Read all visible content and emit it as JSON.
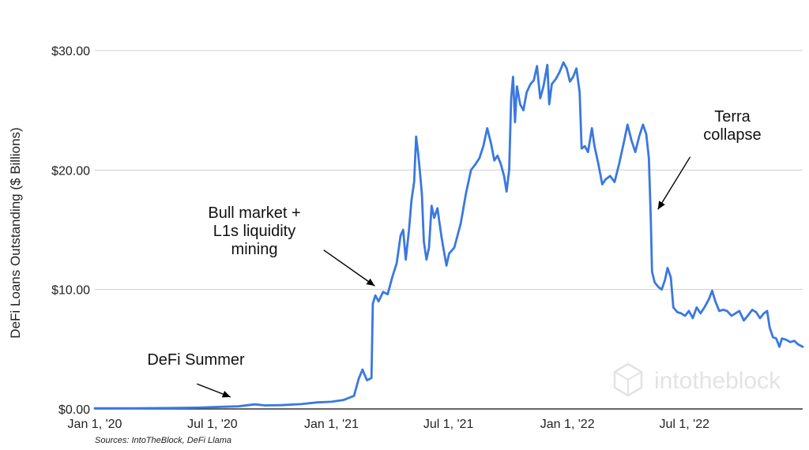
{
  "chart_data": {
    "type": "line",
    "ylabel": "DeFi Loans Outstanding ($ Billions)",
    "ylim": [
      0,
      30
    ],
    "xlim": [
      "2020-01-01",
      "2022-12-31"
    ],
    "grid": true,
    "y_ticks": [
      {
        "value": 0,
        "label": "$0.00"
      },
      {
        "value": 10,
        "label": "$10.00"
      },
      {
        "value": 20,
        "label": "$20.00"
      },
      {
        "value": 30,
        "label": "$30.00"
      }
    ],
    "x_ticks": [
      {
        "date": "2020-01-01",
        "label": "Jan 1, '20"
      },
      {
        "date": "2020-07-01",
        "label": "Jul 1, '20"
      },
      {
        "date": "2021-01-01",
        "label": "Jan 1, '21"
      },
      {
        "date": "2021-07-01",
        "label": "Jul 1, '21"
      },
      {
        "date": "2022-01-01",
        "label": "Jan 1, '22"
      },
      {
        "date": "2022-07-01",
        "label": "Jul 1, '22"
      }
    ],
    "series": [
      {
        "color": "#3a78e0",
        "points": [
          [
            "2020-01-01",
            0.05
          ],
          [
            "2020-03-01",
            0.06
          ],
          [
            "2020-05-01",
            0.08
          ],
          [
            "2020-06-15",
            0.12
          ],
          [
            "2020-07-15",
            0.18
          ],
          [
            "2020-08-10",
            0.22
          ],
          [
            "2020-08-25",
            0.32
          ],
          [
            "2020-09-05",
            0.38
          ],
          [
            "2020-09-20",
            0.3
          ],
          [
            "2020-10-15",
            0.32
          ],
          [
            "2020-11-15",
            0.4
          ],
          [
            "2020-12-10",
            0.55
          ],
          [
            "2021-01-01",
            0.6
          ],
          [
            "2021-01-20",
            0.75
          ],
          [
            "2021-02-05",
            1.1
          ],
          [
            "2021-02-12",
            2.5
          ],
          [
            "2021-02-18",
            3.3
          ],
          [
            "2021-02-25",
            2.4
          ],
          [
            "2021-03-04",
            2.6
          ],
          [
            "2021-03-06",
            8.8
          ],
          [
            "2021-03-10",
            9.5
          ],
          [
            "2021-03-15",
            9.0
          ],
          [
            "2021-03-22",
            9.8
          ],
          [
            "2021-03-29",
            9.6
          ],
          [
            "2021-04-05",
            11.0
          ],
          [
            "2021-04-12",
            12.2
          ],
          [
            "2021-04-18",
            14.5
          ],
          [
            "2021-04-22",
            15.0
          ],
          [
            "2021-04-26",
            12.5
          ],
          [
            "2021-05-01",
            15.0
          ],
          [
            "2021-05-05",
            17.5
          ],
          [
            "2021-05-09",
            19.0
          ],
          [
            "2021-05-12",
            22.8
          ],
          [
            "2021-05-15",
            21.5
          ],
          [
            "2021-05-18",
            19.8
          ],
          [
            "2021-05-21",
            18.0
          ],
          [
            "2021-05-24",
            14.0
          ],
          [
            "2021-05-28",
            12.5
          ],
          [
            "2021-06-01",
            13.5
          ],
          [
            "2021-06-05",
            17.0
          ],
          [
            "2021-06-09",
            16.0
          ],
          [
            "2021-06-14",
            16.8
          ],
          [
            "2021-06-20",
            14.5
          ],
          [
            "2021-06-24",
            13.2
          ],
          [
            "2021-06-28",
            12.0
          ],
          [
            "2021-07-02",
            13.0
          ],
          [
            "2021-07-10",
            13.5
          ],
          [
            "2021-07-20",
            15.5
          ],
          [
            "2021-07-28",
            18.0
          ],
          [
            "2021-08-05",
            20.0
          ],
          [
            "2021-08-12",
            20.5
          ],
          [
            "2021-08-18",
            21.0
          ],
          [
            "2021-08-24",
            22.0
          ],
          [
            "2021-08-30",
            23.5
          ],
          [
            "2021-09-05",
            22.2
          ],
          [
            "2021-09-10",
            20.8
          ],
          [
            "2021-09-15",
            21.2
          ],
          [
            "2021-09-20",
            20.5
          ],
          [
            "2021-09-25",
            19.5
          ],
          [
            "2021-09-29",
            18.2
          ],
          [
            "2021-10-03",
            20.0
          ],
          [
            "2021-10-06",
            26.0
          ],
          [
            "2021-10-09",
            27.8
          ],
          [
            "2021-10-12",
            24.0
          ],
          [
            "2021-10-15",
            27.0
          ],
          [
            "2021-10-20",
            25.5
          ],
          [
            "2021-10-25",
            25.0
          ],
          [
            "2021-10-30",
            26.5
          ],
          [
            "2021-11-05",
            27.2
          ],
          [
            "2021-11-10",
            27.5
          ],
          [
            "2021-11-15",
            28.7
          ],
          [
            "2021-11-20",
            26.0
          ],
          [
            "2021-11-25",
            27.0
          ],
          [
            "2021-12-01",
            28.8
          ],
          [
            "2021-12-04",
            25.5
          ],
          [
            "2021-12-08",
            27.2
          ],
          [
            "2021-12-14",
            27.6
          ],
          [
            "2021-12-20",
            28.2
          ],
          [
            "2021-12-26",
            29.0
          ],
          [
            "2021-12-31",
            28.5
          ],
          [
            "2022-01-05",
            27.4
          ],
          [
            "2022-01-10",
            27.8
          ],
          [
            "2022-01-15",
            28.5
          ],
          [
            "2022-01-20",
            26.5
          ],
          [
            "2022-01-23",
            21.8
          ],
          [
            "2022-01-28",
            22.0
          ],
          [
            "2022-02-02",
            21.5
          ],
          [
            "2022-02-08",
            23.5
          ],
          [
            "2022-02-12",
            22.0
          ],
          [
            "2022-02-18",
            20.5
          ],
          [
            "2022-02-24",
            18.8
          ],
          [
            "2022-03-01",
            19.2
          ],
          [
            "2022-03-08",
            19.5
          ],
          [
            "2022-03-15",
            19.0
          ],
          [
            "2022-03-22",
            20.5
          ],
          [
            "2022-03-29",
            22.2
          ],
          [
            "2022-04-04",
            23.8
          ],
          [
            "2022-04-10",
            22.5
          ],
          [
            "2022-04-16",
            21.5
          ],
          [
            "2022-04-22",
            22.8
          ],
          [
            "2022-04-28",
            23.8
          ],
          [
            "2022-05-03",
            23.0
          ],
          [
            "2022-05-07",
            21.0
          ],
          [
            "2022-05-10",
            16.0
          ],
          [
            "2022-05-12",
            11.5
          ],
          [
            "2022-05-16",
            10.6
          ],
          [
            "2022-05-22",
            10.2
          ],
          [
            "2022-05-27",
            10.0
          ],
          [
            "2022-06-01",
            10.8
          ],
          [
            "2022-06-05",
            11.8
          ],
          [
            "2022-06-10",
            11.0
          ],
          [
            "2022-06-14",
            8.5
          ],
          [
            "2022-06-20",
            8.1
          ],
          [
            "2022-06-26",
            8.0
          ],
          [
            "2022-07-02",
            7.8
          ],
          [
            "2022-07-08",
            8.2
          ],
          [
            "2022-07-14",
            7.6
          ],
          [
            "2022-07-20",
            8.5
          ],
          [
            "2022-07-26",
            8.0
          ],
          [
            "2022-08-01",
            8.5
          ],
          [
            "2022-08-08",
            9.2
          ],
          [
            "2022-08-13",
            9.9
          ],
          [
            "2022-08-18",
            9.0
          ],
          [
            "2022-08-24",
            8.2
          ],
          [
            "2022-08-30",
            8.3
          ],
          [
            "2022-09-05",
            8.2
          ],
          [
            "2022-09-12",
            7.8
          ],
          [
            "2022-09-18",
            8.0
          ],
          [
            "2022-09-24",
            8.2
          ],
          [
            "2022-10-01",
            7.4
          ],
          [
            "2022-10-07",
            7.8
          ],
          [
            "2022-10-14",
            8.3
          ],
          [
            "2022-10-20",
            8.1
          ],
          [
            "2022-10-26",
            7.6
          ],
          [
            "2022-11-01",
            8.0
          ],
          [
            "2022-11-06",
            8.2
          ],
          [
            "2022-11-10",
            6.8
          ],
          [
            "2022-11-15",
            6.0
          ],
          [
            "2022-11-20",
            5.9
          ],
          [
            "2022-11-25",
            5.2
          ],
          [
            "2022-11-29",
            5.9
          ],
          [
            "2022-12-05",
            5.8
          ],
          [
            "2022-12-12",
            5.6
          ],
          [
            "2022-12-18",
            5.7
          ],
          [
            "2022-12-24",
            5.4
          ],
          [
            "2022-12-31",
            5.2
          ]
        ]
      }
    ],
    "annotations": [
      {
        "text": [
          "DeFi Summer"
        ],
        "arrow_from": [
          "2020-06-07",
          2.1
        ],
        "arrow_to": [
          "2020-07-29",
          1.0
        ]
      },
      {
        "text": [
          "Bull market +",
          "L1s liquidity",
          "mining"
        ],
        "arrow_from": [
          "2020-12-20",
          13.3
        ],
        "arrow_to": [
          "2021-03-09",
          10.3
        ]
      },
      {
        "text": [
          "Terra",
          "collapse"
        ],
        "arrow_from": [
          "2022-07-10",
          21.1
        ],
        "arrow_to": [
          "2022-05-21",
          16.7
        ]
      }
    ],
    "source": "Sources: IntoTheBlock, DeFi Llama",
    "watermark": "intotheblock"
  }
}
